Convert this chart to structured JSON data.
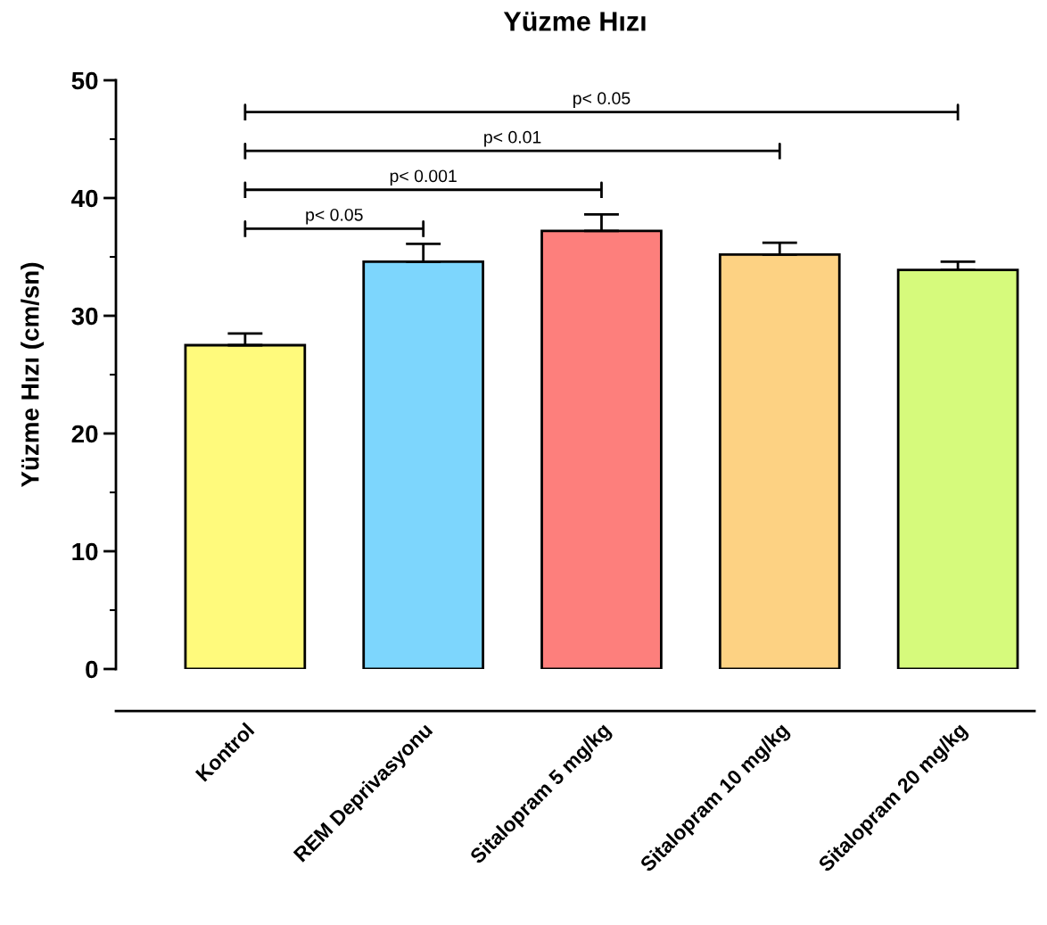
{
  "chart_data": {
    "type": "bar",
    "title": "Yüzme Hızı",
    "ylabel": "Yüzme Hızı (cm/sn)",
    "categories": [
      "Kontrol",
      "REM Deprivasyonu",
      "Sitalopram 5 mg/kg",
      "Sitalopram 10 mg/kg",
      "Sitalopram 20 mg/kg"
    ],
    "values": [
      27.5,
      34.6,
      37.2,
      35.2,
      33.9
    ],
    "errors": [
      1.0,
      1.5,
      1.4,
      1.0,
      0.7
    ],
    "colors": [
      "#fffa7c",
      "#7dd6fd",
      "#fd7f7c",
      "#fdd283",
      "#d6fa7c"
    ],
    "ylim": [
      0,
      50
    ],
    "yticks": [
      0,
      10,
      20,
      30,
      40,
      50
    ],
    "grid": false,
    "annotations": [
      "p< 0.05",
      "p< 0.001",
      "p< 0.01",
      "p< 0.05"
    ]
  }
}
